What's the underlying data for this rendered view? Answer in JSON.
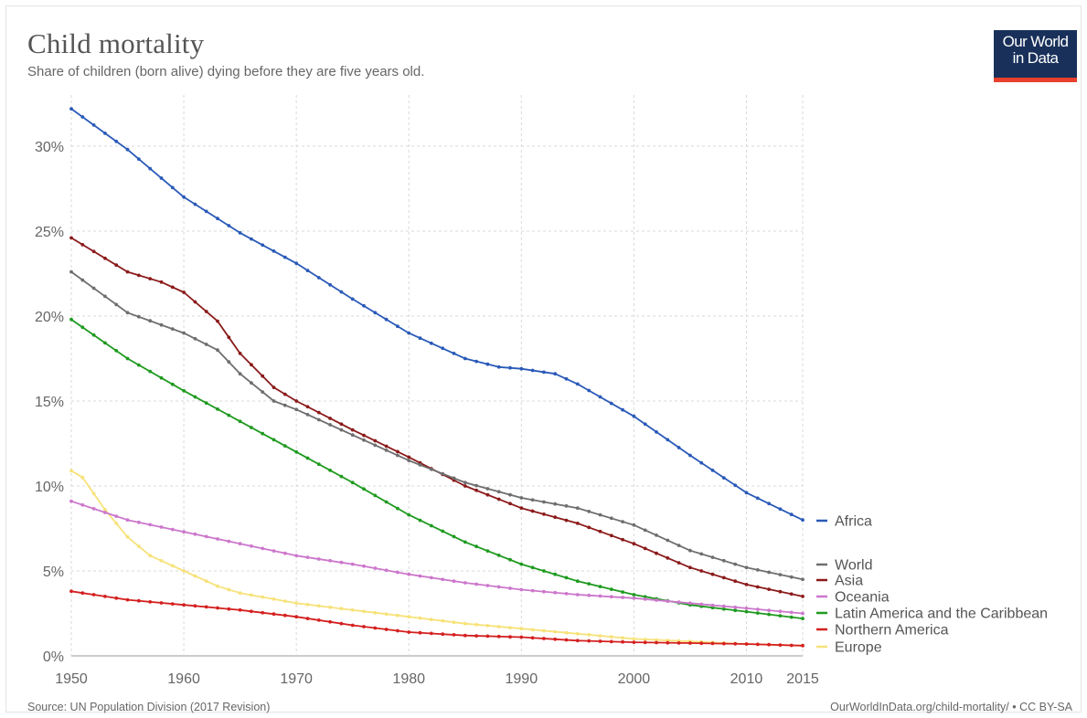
{
  "header": {
    "title": "Child mortality",
    "subtitle": "Share of children (born alive) dying before they are five years old."
  },
  "logo": {
    "line1": "Our World",
    "line2": "in Data"
  },
  "footer": {
    "source": "Source: UN Population Division (2017 Revision)",
    "credit": "OurWorldInData.org/child-mortality/ • CC BY-SA"
  },
  "colors": {
    "africa": "#2a5ab8",
    "world": "#6e6e6e",
    "asia": "#8b1a1a",
    "oceania": "#cc77cc",
    "latin_america": "#1f9a1f",
    "northern_america": "#d42020",
    "europe": "#f7e27a",
    "grid": "#d9d9d9",
    "logo_bg": "#19305a",
    "logo_accent": "#e8402d"
  },
  "chart_data": {
    "type": "line",
    "xlim": [
      1950,
      2015
    ],
    "ylim": [
      0,
      32
    ],
    "x_ticks": [
      "1950",
      "1960",
      "1970",
      "1980",
      "1990",
      "2000",
      "2010",
      "2015"
    ],
    "y_ticks": [
      "0%",
      "5%",
      "10%",
      "15%",
      "20%",
      "25%",
      "30%"
    ],
    "grid": "dotted",
    "legend_placement": "right, at line ends",
    "series": [
      {
        "name": "Africa",
        "color_key": "africa",
        "points": [
          [
            1950,
            32.2
          ],
          [
            1955,
            29.8
          ],
          [
            1960,
            27.0
          ],
          [
            1965,
            24.9
          ],
          [
            1970,
            23.1
          ],
          [
            1975,
            21.0
          ],
          [
            1980,
            19.0
          ],
          [
            1985,
            17.5
          ],
          [
            1988,
            17.0
          ],
          [
            1990,
            16.9
          ],
          [
            1993,
            16.6
          ],
          [
            1995,
            16.0
          ],
          [
            2000,
            14.1
          ],
          [
            2005,
            11.8
          ],
          [
            2010,
            9.6
          ],
          [
            2015,
            8.0
          ]
        ]
      },
      {
        "name": "World",
        "color_key": "world",
        "points": [
          [
            1950,
            22.6
          ],
          [
            1955,
            20.2
          ],
          [
            1960,
            19.0
          ],
          [
            1963,
            18.0
          ],
          [
            1965,
            16.6
          ],
          [
            1968,
            15.0
          ],
          [
            1970,
            14.5
          ],
          [
            1975,
            13.0
          ],
          [
            1980,
            11.5
          ],
          [
            1985,
            10.2
          ],
          [
            1990,
            9.3
          ],
          [
            1995,
            8.7
          ],
          [
            2000,
            7.7
          ],
          [
            2005,
            6.2
          ],
          [
            2010,
            5.2
          ],
          [
            2015,
            4.5
          ]
        ]
      },
      {
        "name": "Asia",
        "color_key": "asia",
        "points": [
          [
            1950,
            24.6
          ],
          [
            1955,
            22.6
          ],
          [
            1958,
            22.0
          ],
          [
            1960,
            21.4
          ],
          [
            1963,
            19.7
          ],
          [
            1965,
            17.8
          ],
          [
            1968,
            15.8
          ],
          [
            1970,
            15.0
          ],
          [
            1975,
            13.3
          ],
          [
            1980,
            11.7
          ],
          [
            1985,
            10.0
          ],
          [
            1990,
            8.7
          ],
          [
            1995,
            7.8
          ],
          [
            2000,
            6.6
          ],
          [
            2005,
            5.2
          ],
          [
            2010,
            4.2
          ],
          [
            2015,
            3.5
          ]
        ]
      },
      {
        "name": "Oceania",
        "color_key": "oceania",
        "points": [
          [
            1950,
            9.1
          ],
          [
            1955,
            8.0
          ],
          [
            1960,
            7.3
          ],
          [
            1965,
            6.6
          ],
          [
            1970,
            5.9
          ],
          [
            1975,
            5.4
          ],
          [
            1980,
            4.8
          ],
          [
            1985,
            4.3
          ],
          [
            1990,
            3.9
          ],
          [
            1995,
            3.6
          ],
          [
            2000,
            3.4
          ],
          [
            2005,
            3.1
          ],
          [
            2010,
            2.8
          ],
          [
            2015,
            2.5
          ]
        ]
      },
      {
        "name": "Latin America and the Caribbean",
        "color_key": "latin_america",
        "points": [
          [
            1950,
            19.8
          ],
          [
            1955,
            17.5
          ],
          [
            1960,
            15.6
          ],
          [
            1965,
            13.8
          ],
          [
            1970,
            12.0
          ],
          [
            1975,
            10.2
          ],
          [
            1980,
            8.3
          ],
          [
            1985,
            6.7
          ],
          [
            1990,
            5.4
          ],
          [
            1995,
            4.4
          ],
          [
            2000,
            3.6
          ],
          [
            2005,
            3.0
          ],
          [
            2010,
            2.6
          ],
          [
            2015,
            2.2
          ]
        ]
      },
      {
        "name": "Northern America",
        "color_key": "northern_america",
        "points": [
          [
            1950,
            3.8
          ],
          [
            1955,
            3.3
          ],
          [
            1960,
            3.0
          ],
          [
            1965,
            2.7
          ],
          [
            1970,
            2.3
          ],
          [
            1975,
            1.8
          ],
          [
            1980,
            1.4
          ],
          [
            1985,
            1.2
          ],
          [
            1990,
            1.1
          ],
          [
            1995,
            0.9
          ],
          [
            2000,
            0.8
          ],
          [
            2005,
            0.75
          ],
          [
            2010,
            0.7
          ],
          [
            2015,
            0.6
          ]
        ]
      },
      {
        "name": "Europe",
        "color_key": "europe",
        "points": [
          [
            1950,
            10.9
          ],
          [
            1951,
            10.5
          ],
          [
            1953,
            8.6
          ],
          [
            1955,
            7.0
          ],
          [
            1957,
            5.9
          ],
          [
            1960,
            5.0
          ],
          [
            1963,
            4.1
          ],
          [
            1965,
            3.7
          ],
          [
            1970,
            3.1
          ],
          [
            1975,
            2.7
          ],
          [
            1980,
            2.3
          ],
          [
            1985,
            1.9
          ],
          [
            1990,
            1.6
          ],
          [
            1995,
            1.3
          ],
          [
            2000,
            1.0
          ],
          [
            2005,
            0.85
          ],
          [
            2010,
            0.7
          ],
          [
            2015,
            0.6
          ]
        ]
      }
    ]
  }
}
